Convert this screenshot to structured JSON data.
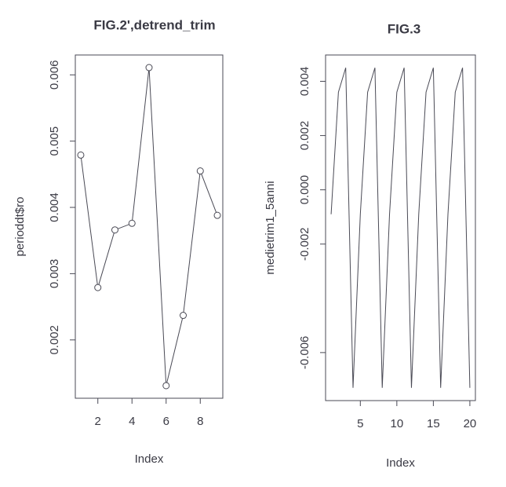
{
  "chart_data": [
    {
      "type": "line",
      "title": "FIG.2',detrend_trim",
      "x_label": "Index",
      "y_label": "perioddt$ro",
      "x": [
        1,
        2,
        3,
        4,
        5,
        6,
        7,
        8,
        9
      ],
      "values": [
        0.00479,
        0.00279,
        0.00366,
        0.00376,
        0.00611,
        0.00131,
        0.00237,
        0.00455,
        0.00388
      ],
      "color": "#4a4a55",
      "markers": true,
      "xlim": [
        0.68,
        9.32
      ],
      "xticks": [
        2,
        4,
        6,
        8
      ],
      "ylim": [
        0.00112,
        0.0063
      ],
      "yticks": [
        0.002,
        0.003,
        0.004,
        0.005,
        0.006
      ]
    },
    {
      "type": "line",
      "title": "FIG.3",
      "x_label": "Index",
      "y_label": "medietrim1_5anni",
      "x": [
        1,
        2,
        3,
        4,
        5,
        6,
        7,
        8,
        9,
        10,
        11,
        12,
        13,
        14,
        15,
        16,
        17,
        18,
        19,
        20
      ],
      "values": [
        -0.0009,
        0.0036,
        0.0045,
        -0.0073,
        -0.0009,
        0.0036,
        0.0045,
        -0.0073,
        -0.0009,
        0.0036,
        0.0045,
        -0.0073,
        -0.0009,
        0.0036,
        0.0045,
        -0.0073,
        -0.0009,
        0.0036,
        0.0045,
        -0.0073
      ],
      "color": "#4a4a55",
      "markers": false,
      "xlim": [
        0.24,
        20.76
      ],
      "xticks": [
        5,
        10,
        15,
        20
      ],
      "ylim": [
        -0.00777,
        0.00497
      ],
      "yticks": [
        -0.006,
        -0.002,
        {
          "value": 0,
          "label": "0.000"
        },
        0.002,
        0.004
      ]
    }
  ]
}
